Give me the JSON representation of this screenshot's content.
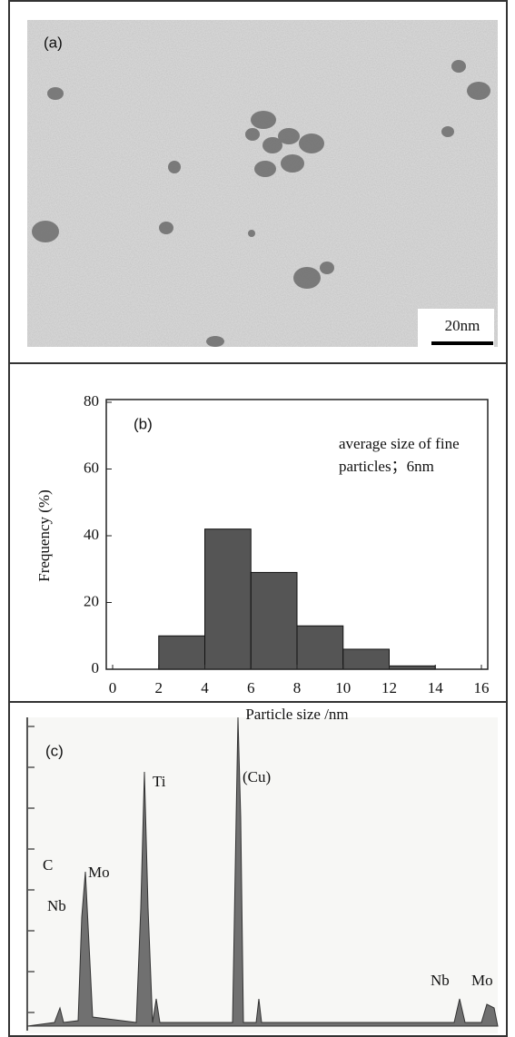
{
  "image_panel": {
    "label": "(a)",
    "scale_bar": "20nm"
  },
  "chart_data": [
    {
      "type": "histogram",
      "label": "(b)",
      "annotation": [
        "average size of fine",
        "particles；6nm"
      ],
      "bins": [
        2,
        4,
        6,
        8,
        10,
        12,
        14
      ],
      "values": [
        10,
        42,
        29,
        13,
        6,
        1
      ],
      "color": "#555555",
      "xlabel": "Particle size /nm",
      "ylabel": "Frequency (%)",
      "xlim": [
        0,
        16
      ],
      "xticks": [
        0,
        2,
        4,
        6,
        8,
        10,
        12,
        14,
        16
      ],
      "ylim": [
        0,
        80
      ],
      "yticks": [
        0,
        20,
        40,
        60,
        80
      ]
    },
    {
      "type": "spectrum",
      "label": "(c)",
      "peak_labels": [
        "C",
        "Nb",
        "Mo",
        "Ti",
        "(Cu)",
        "Nb",
        "Mo"
      ]
    }
  ]
}
